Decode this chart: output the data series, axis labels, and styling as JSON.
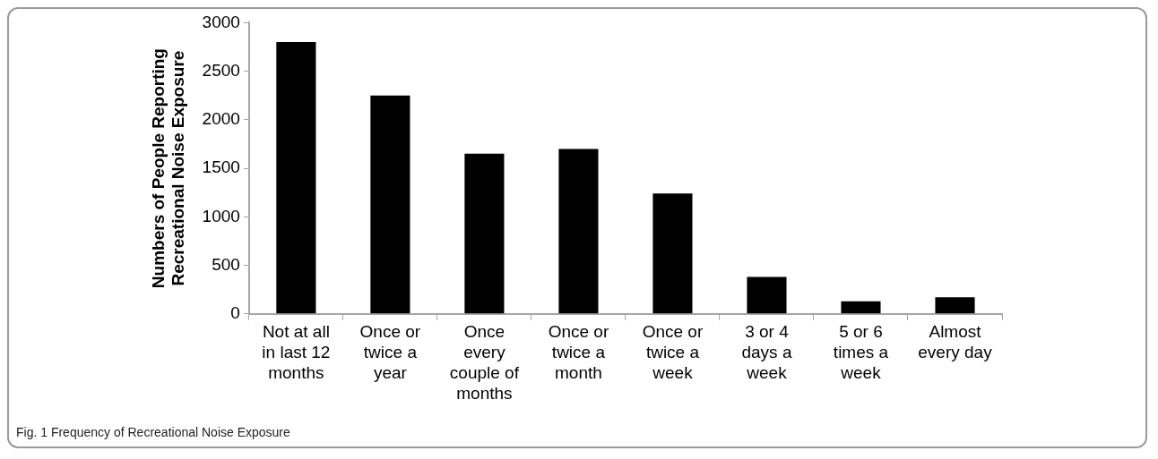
{
  "chart_data": {
    "type": "bar",
    "ylabel": "Numbers of People Reporting Recreational Noise Exposure",
    "categories": [
      "Not at all in last 12 months",
      "Once or twice a year",
      "Once every couple of months",
      "Once or twice a month",
      "Once or twice a week",
      "3 or 4 days a week",
      "5 or 6 times a week",
      "Almost every day"
    ],
    "values": [
      2800,
      2250,
      1650,
      1700,
      1240,
      380,
      130,
      170
    ],
    "color": "#000000",
    "ylim": [
      0,
      3000
    ],
    "yticks": [
      0,
      500,
      1000,
      1500,
      2000,
      2500,
      3000
    ],
    "grid": false,
    "annotations": [
      "Fig. 1 Frequency of Recreational Noise Exposure"
    ]
  }
}
